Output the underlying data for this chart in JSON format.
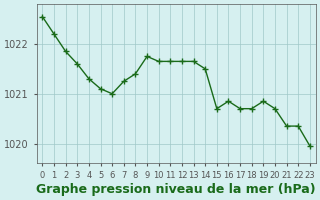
{
  "x": [
    0,
    1,
    2,
    3,
    4,
    5,
    6,
    7,
    8,
    9,
    10,
    11,
    12,
    13,
    14,
    15,
    16,
    17,
    18,
    19,
    20,
    21,
    22,
    23
  ],
  "y": [
    1022.55,
    1022.2,
    1021.85,
    1021.6,
    1021.3,
    1021.1,
    1021.0,
    1021.25,
    1021.4,
    1021.75,
    1021.65,
    1021.65,
    1021.65,
    1021.65,
    1021.5,
    1020.7,
    1020.85,
    1020.7,
    1020.7,
    1020.85,
    1020.7,
    1020.35,
    1020.35,
    1019.95
  ],
  "line_color": "#1a6b1a",
  "marker": "+",
  "marker_size": 5,
  "bg_color": "#d6f0f0",
  "grid_color": "#a0c8c8",
  "xlabel": "Graphe pression niveau de la mer (hPa)",
  "xlabel_fontsize": 9,
  "ylabel_ticks": [
    1020,
    1021,
    1022
  ],
  "ylim": [
    1019.6,
    1022.8
  ],
  "xlim": [
    -0.5,
    23.5
  ],
  "tick_color": "#555555",
  "tick_fontsize": 7
}
